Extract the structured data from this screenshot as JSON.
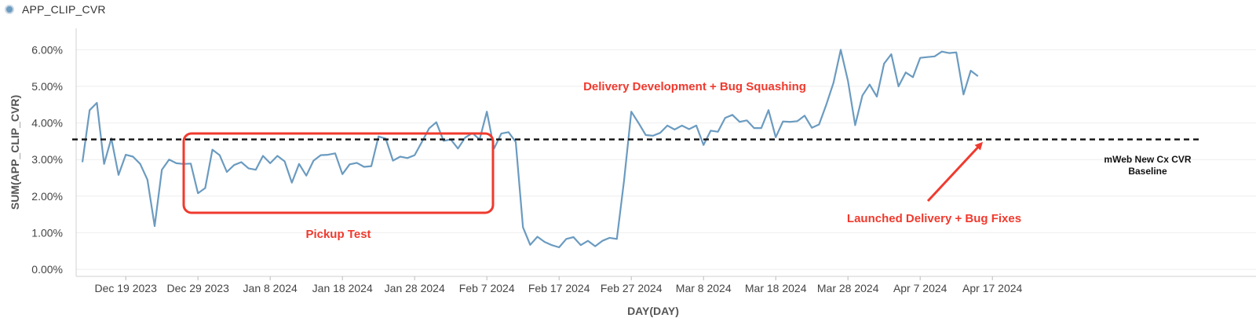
{
  "legend": {
    "label": "APP_CLIP_CVR",
    "color": "#6b9bc0"
  },
  "chart_data": {
    "type": "line",
    "ylabel": "SUM(APP_CLIP_CVR)",
    "xlabel": "DAY(DAY)",
    "ylim": [
      0,
      6.5
    ],
    "y_ticks": [
      "0.00%",
      "1.00%",
      "2.00%",
      "3.00%",
      "4.00%",
      "5.00%",
      "6.00%"
    ],
    "y_tick_values": [
      0,
      1,
      2,
      3,
      4,
      5,
      6
    ],
    "x_ticks": [
      "Dec 19 2023",
      "Dec 29 2023",
      "Jan 8 2024",
      "Jan 18 2024",
      "Jan 28 2024",
      "Feb 7 2024",
      "Feb 17 2024",
      "Feb 27 2024",
      "Mar 8 2024",
      "Mar 18 2024",
      "Mar 28 2024",
      "Apr 7 2024",
      "Apr 17 2024"
    ],
    "x_start": "Dec 13 2023",
    "grid": true,
    "series": [
      {
        "name": "APP_CLIP_CVR",
        "color": "#6b9bc0",
        "values": [
          2.93,
          4.35,
          4.55,
          2.88,
          3.58,
          2.58,
          3.13,
          3.08,
          2.88,
          2.45,
          1.18,
          2.72,
          3.0,
          2.9,
          2.88,
          2.89,
          2.08,
          2.22,
          3.27,
          3.12,
          2.66,
          2.85,
          2.93,
          2.76,
          2.72,
          3.1,
          2.9,
          3.1,
          2.95,
          2.37,
          2.88,
          2.56,
          2.97,
          3.12,
          3.13,
          3.17,
          2.6,
          2.87,
          2.91,
          2.8,
          2.82,
          3.63,
          3.57,
          2.97,
          3.08,
          3.04,
          3.12,
          3.48,
          3.85,
          4.02,
          3.51,
          3.55,
          3.3,
          3.6,
          3.72,
          3.55,
          4.31,
          3.3,
          3.71,
          3.75,
          3.48,
          1.15,
          0.67,
          0.89,
          0.75,
          0.66,
          0.6,
          0.83,
          0.88,
          0.66,
          0.78,
          0.63,
          0.78,
          0.86,
          0.83,
          2.43,
          4.31,
          4.0,
          3.67,
          3.65,
          3.73,
          3.93,
          3.82,
          3.93,
          3.83,
          3.93,
          3.4,
          3.79,
          3.76,
          4.14,
          4.22,
          4.03,
          4.07,
          3.86,
          3.86,
          4.35,
          3.61,
          4.04,
          4.03,
          4.05,
          4.2,
          3.87,
          3.96,
          4.5,
          5.1,
          6.0,
          5.15,
          3.94,
          4.75,
          5.05,
          4.72,
          5.62,
          5.88,
          5.0,
          5.38,
          5.25,
          5.78,
          5.8,
          5.82,
          5.95,
          5.91,
          5.93,
          4.78,
          5.43,
          5.28
        ]
      }
    ],
    "baseline": {
      "value": 3.55,
      "label_line1": "mWeb New Cx CVR",
      "label_line2": "Baseline"
    },
    "annotations": {
      "delivery_dev": "Delivery Development + Bug Squashing",
      "pickup": "Pickup Test",
      "launched": "Launched Delivery + Bug Fixes"
    },
    "highlight_color": "#f03a2e"
  }
}
